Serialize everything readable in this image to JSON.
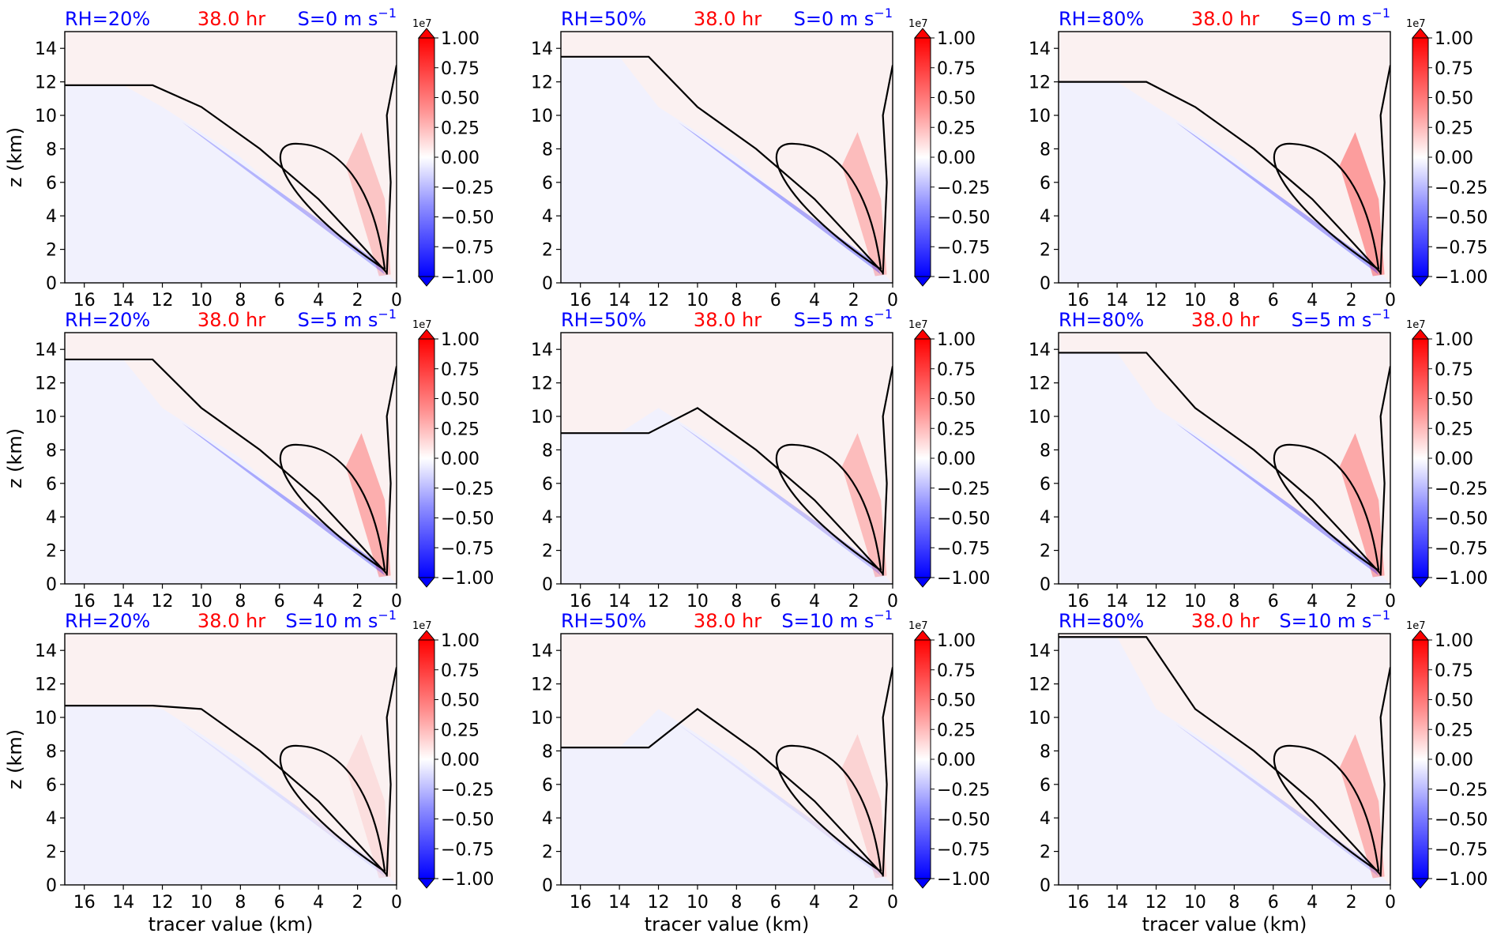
{
  "chart_data": {
    "type": "heatmap",
    "rows": [
      {
        "shear": "S=0 m s",
        "superscript": "−1"
      },
      {
        "shear": "S=5 m s",
        "superscript": "−1"
      },
      {
        "shear": "S=10 m s",
        "superscript": "−1"
      }
    ],
    "columns": [
      "RH=20%",
      "RH=50%",
      "RH=80%"
    ],
    "time_label": "38.0 hr",
    "xlabel": "tracer value (km)",
    "ylabel": "z (km)",
    "xlim": [
      17,
      0
    ],
    "ylim": [
      0,
      15
    ],
    "xticks": [
      "16",
      "14",
      "12",
      "10",
      "8",
      "6",
      "4",
      "2",
      "0"
    ],
    "yticks": [
      "0",
      "2",
      "4",
      "6",
      "8",
      "10",
      "12",
      "14"
    ],
    "colorbar": {
      "scale_label": "1e7",
      "ticks": [
        "1.00",
        "0.75",
        "0.50",
        "0.25",
        "0.00",
        "−0.25",
        "−0.50",
        "−0.75",
        "−1.00"
      ],
      "range": [
        -1.0,
        1.0
      ],
      "colormap": "bwr"
    },
    "colors": {
      "rh_label": "#0000ff",
      "time_label": "#ff0000",
      "shear_label": "#0000ff",
      "background_fill": "#f1f1fd",
      "positive": "#ff0000",
      "negative": "#0000ff",
      "contour": "#000000"
    }
  }
}
